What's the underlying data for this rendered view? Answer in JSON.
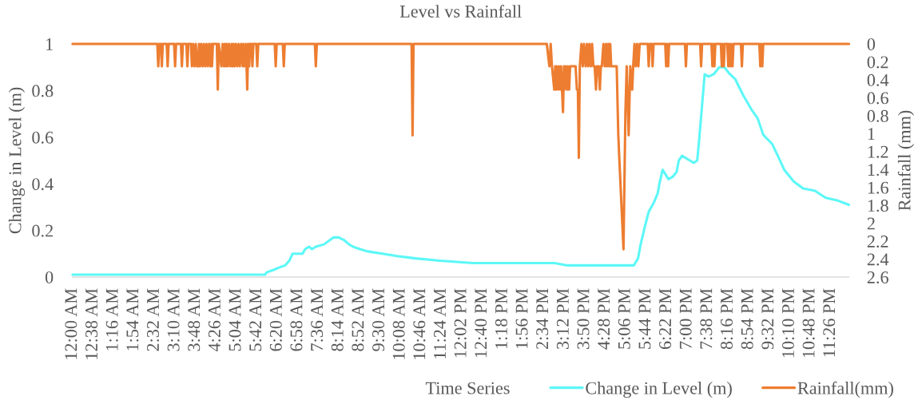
{
  "chart_data": {
    "type": "line",
    "title": "Level vs Rainfall",
    "xlabel": "Time Series",
    "ylabel": "Change in Level (m)",
    "y2label": "Rainfall (mm)",
    "xlim": [
      0,
      24
    ],
    "xticks": [
      {
        "value": 0,
        "label": "12:00 AM"
      },
      {
        "value": 0.6333,
        "label": "12:38 AM"
      },
      {
        "value": 1.2667,
        "label": "1:16 AM"
      },
      {
        "value": 1.9,
        "label": "1:54 AM"
      },
      {
        "value": 2.5333,
        "label": "2:32 AM"
      },
      {
        "value": 3.1667,
        "label": "3:10 AM"
      },
      {
        "value": 3.8,
        "label": "3:48 AM"
      },
      {
        "value": 4.4333,
        "label": "4:26 AM"
      },
      {
        "value": 5.0667,
        "label": "5:04 AM"
      },
      {
        "value": 5.7,
        "label": "5:42 AM"
      },
      {
        "value": 6.3333,
        "label": "6:20 AM"
      },
      {
        "value": 6.9667,
        "label": "6:58 AM"
      },
      {
        "value": 7.6,
        "label": "7:36 AM"
      },
      {
        "value": 8.2333,
        "label": "8:14 AM"
      },
      {
        "value": 8.8667,
        "label": "8:52 AM"
      },
      {
        "value": 9.5,
        "label": "9:30 AM"
      },
      {
        "value": 10.1333,
        "label": "10:08 AM"
      },
      {
        "value": 10.7667,
        "label": "10:46 AM"
      },
      {
        "value": 11.4,
        "label": "11:24 AM"
      },
      {
        "value": 12.0333,
        "label": "12:02 PM"
      },
      {
        "value": 12.6667,
        "label": "12:40 PM"
      },
      {
        "value": 13.3,
        "label": "1:18 PM"
      },
      {
        "value": 13.9333,
        "label": "1:56 PM"
      },
      {
        "value": 14.5667,
        "label": "2:34 PM"
      },
      {
        "value": 15.2,
        "label": "3:12 PM"
      },
      {
        "value": 15.8333,
        "label": "3:50 PM"
      },
      {
        "value": 16.4667,
        "label": "4:28 PM"
      },
      {
        "value": 17.1,
        "label": "5:06 PM"
      },
      {
        "value": 17.7333,
        "label": "5:44 PM"
      },
      {
        "value": 18.3667,
        "label": "6:22 PM"
      },
      {
        "value": 19.0,
        "label": "7:00 PM"
      },
      {
        "value": 19.6333,
        "label": "7:38 PM"
      },
      {
        "value": 20.2667,
        "label": "8:16 PM"
      },
      {
        "value": 20.9,
        "label": "8:54 PM"
      },
      {
        "value": 21.5333,
        "label": "9:32 PM"
      },
      {
        "value": 22.1667,
        "label": "10:10 PM"
      },
      {
        "value": 22.8,
        "label": "10:48 PM"
      },
      {
        "value": 23.4333,
        "label": "11:26 PM"
      }
    ],
    "ylim": [
      0,
      1
    ],
    "yticks": [
      0,
      0.2,
      0.4,
      0.6,
      0.8,
      1
    ],
    "y2lim": [
      2.6,
      0
    ],
    "y2ticks": [
      0,
      0.2,
      0.4,
      0.6,
      0.8,
      1,
      1.2,
      1.4,
      1.6,
      1.8,
      2,
      2.2,
      2.4,
      2.6
    ],
    "legend": "bottom",
    "series": [
      {
        "name": "Change in Level (m)",
        "color": "#5cf7f7",
        "x": [
          0,
          5.95,
          6.0,
          6.2,
          6.37,
          6.57,
          6.7,
          6.8,
          7.11,
          7.19,
          7.31,
          7.4,
          7.52,
          7.77,
          7.97,
          8.07,
          8.22,
          8.38,
          8.55,
          8.67,
          8.88,
          9.12,
          9.58,
          10.03,
          10.6,
          11.35,
          12.38,
          14.9,
          15.3,
          17.35,
          17.48,
          17.56,
          17.68,
          17.81,
          17.97,
          18.09,
          18.14,
          18.24,
          18.42,
          18.55,
          18.67,
          18.74,
          18.84,
          19.08,
          19.2,
          19.31,
          19.37,
          19.54,
          19.66,
          19.82,
          19.99,
          20.15,
          20.32,
          20.48,
          20.73,
          20.98,
          21.18,
          21.35,
          21.63,
          21.8,
          22.0,
          22.29,
          22.58,
          22.95,
          23.28,
          23.61,
          24
        ],
        "values": [
          0.01,
          0.01,
          0.02,
          0.03,
          0.04,
          0.05,
          0.07,
          0.1,
          0.1,
          0.12,
          0.13,
          0.12,
          0.13,
          0.14,
          0.16,
          0.17,
          0.17,
          0.16,
          0.14,
          0.13,
          0.12,
          0.11,
          0.1,
          0.09,
          0.08,
          0.07,
          0.06,
          0.06,
          0.05,
          0.05,
          0.08,
          0.14,
          0.21,
          0.28,
          0.32,
          0.36,
          0.4,
          0.46,
          0.42,
          0.43,
          0.45,
          0.5,
          0.52,
          0.5,
          0.49,
          0.5,
          0.59,
          0.87,
          0.86,
          0.87,
          0.9,
          0.9,
          0.87,
          0.85,
          0.78,
          0.72,
          0.68,
          0.61,
          0.57,
          0.52,
          0.46,
          0.41,
          0.38,
          0.37,
          0.34,
          0.33,
          0.31
        ]
      },
      {
        "name": "Rainfall(mm)",
        "color": "#ed7d31",
        "axis": "y2",
        "x": [
          0,
          2.62,
          2.65,
          2.68,
          2.73,
          2.76,
          2.79,
          2.91,
          2.94,
          2.97,
          3.14,
          3.17,
          3.2,
          3.35,
          3.38,
          3.41,
          3.52,
          3.55,
          3.58,
          3.66,
          3.69,
          3.73,
          3.77,
          3.81,
          3.85,
          3.88,
          3.91,
          3.94,
          3.98,
          4.02,
          4.06,
          4.1,
          4.14,
          4.18,
          4.22,
          4.26,
          4.29,
          4.31,
          4.34,
          4.46,
          4.49,
          4.52,
          4.6,
          4.64,
          4.68,
          4.71,
          4.74,
          4.77,
          4.8,
          4.84,
          4.88,
          4.92,
          4.95,
          4.98,
          5.01,
          5.05,
          5.09,
          5.13,
          5.17,
          5.21,
          5.26,
          5.28,
          5.31,
          5.36,
          5.4,
          5.43,
          5.46,
          5.49,
          5.53,
          5.56,
          5.59,
          5.68,
          5.71,
          5.74,
          6.25,
          6.28,
          6.31,
          6.5,
          6.53,
          6.56,
          7.49,
          7.52,
          7.55,
          10.48,
          10.51,
          10.54,
          14.66,
          14.74,
          14.78,
          14.82,
          14.89,
          14.92,
          14.94,
          14.96,
          15.0,
          15.03,
          15.07,
          15.1,
          15.16,
          15.19,
          15.21,
          15.24,
          15.29,
          15.31,
          15.35,
          15.38,
          15.55,
          15.59,
          15.62,
          15.65,
          15.68,
          15.73,
          15.77,
          15.81,
          15.86,
          15.9,
          15.94,
          15.98,
          16.02,
          16.06,
          16.1,
          16.14,
          16.18,
          16.21,
          16.26,
          16.3,
          16.33,
          16.36,
          16.41,
          16.45,
          16.49,
          16.52,
          16.56,
          16.59,
          16.62,
          16.65,
          16.82,
          16.87,
          16.9,
          17.03,
          17.09,
          17.13,
          17.19,
          17.24,
          17.3,
          17.33,
          17.37,
          17.41,
          17.45,
          17.49,
          17.53,
          17.78,
          17.81,
          17.84,
          17.9,
          17.93,
          17.96,
          18.32,
          18.35,
          18.38,
          18.41,
          18.44,
          18.93,
          18.96,
          18.99,
          19.4,
          19.43,
          19.46,
          19.75,
          19.78,
          19.81,
          19.84,
          19.87,
          20.04,
          20.07,
          20.1,
          20.13,
          20.16,
          20.24,
          20.27,
          20.3,
          20.33,
          20.36,
          20.4,
          20.43,
          20.66,
          20.69,
          20.72,
          21.23,
          21.26,
          21.29,
          21.32,
          21.35,
          24
        ],
        "values": [
          0,
          0,
          0.25,
          0,
          0,
          0.25,
          0,
          0,
          0.25,
          0,
          0,
          0.25,
          0,
          0,
          0.25,
          0,
          0,
          0.25,
          0,
          0,
          0.25,
          0,
          0.25,
          0,
          0.25,
          0.25,
          0,
          0.25,
          0,
          0.25,
          0,
          0.25,
          0,
          0.25,
          0,
          0.25,
          0,
          0.25,
          0,
          0,
          0.51,
          0,
          0.25,
          0,
          0.25,
          0,
          0.25,
          0,
          0.25,
          0,
          0.25,
          0,
          0.25,
          0,
          0.25,
          0,
          0.25,
          0,
          0.25,
          0,
          0.25,
          0,
          0.25,
          0,
          0.51,
          0,
          0.25,
          0,
          0,
          0.25,
          0,
          0,
          0.25,
          0,
          0,
          0.25,
          0,
          0,
          0.25,
          0,
          0,
          0.25,
          0,
          0,
          1.02,
          0,
          0,
          0.25,
          0,
          0.25,
          0.51,
          0.25,
          0.51,
          0.25,
          0.51,
          0.25,
          0.51,
          0.25,
          0.76,
          0.25,
          0.51,
          0.25,
          0.51,
          0.25,
          0.51,
          0.25,
          0.25,
          0.51,
          0.51,
          1.27,
          0.25,
          0,
          0.25,
          0,
          0.25,
          0,
          0.25,
          0,
          0.25,
          0,
          0.25,
          0.25,
          0.51,
          0.25,
          0.25,
          0.51,
          0.25,
          0.25,
          0,
          0.25,
          0,
          0.25,
          0,
          0.25,
          0,
          0.25,
          0.25,
          1.02,
          1.27,
          2.29,
          0.76,
          0.25,
          1.02,
          0.25,
          0.51,
          0.25,
          0,
          0.25,
          0,
          0.25,
          0,
          0,
          0.25,
          0,
          0,
          0.25,
          0,
          0,
          0.25,
          0,
          0.25,
          0,
          0,
          0.25,
          0,
          0,
          0.25,
          0,
          0,
          0.25,
          0,
          0.25,
          0,
          0,
          0.25,
          0,
          0.25,
          0,
          0,
          0.25,
          0,
          0.25,
          0,
          0.25,
          0,
          0,
          0.25,
          0,
          0,
          0.25,
          0,
          0.25,
          0,
          0
        ]
      }
    ]
  }
}
